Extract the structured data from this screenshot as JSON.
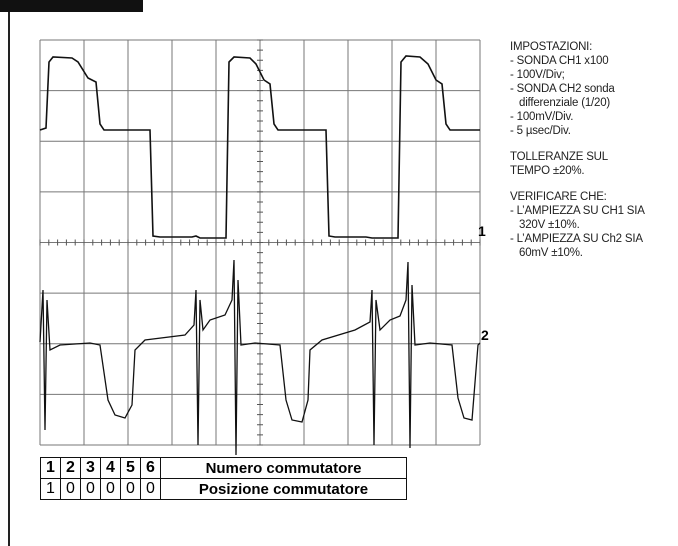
{
  "settings": {
    "title": "IMPOSTAZIONI:",
    "items": [
      "- SONDA CH1 x100",
      "- 100V/Div;",
      "- SONDA CH2 sonda differenziale (1/20)",
      "- 100mV/Div.",
      "- 5 µsec/Div."
    ]
  },
  "tolerance": [
    "TOLLERANZE SUL",
    "TEMPO ±20%."
  ],
  "verify": {
    "title": "VERIFICARE CHE:",
    "items": [
      "- L’AMPIEZZA SU CH1 SIA 320V ±10%.",
      "- L’AMPIEZZA SU Ch2 SIA 60mV ±10%."
    ]
  },
  "markers": [
    "1",
    "2"
  ],
  "table": {
    "rows": [
      [
        "1",
        "2",
        "3",
        "4",
        "5",
        "6",
        "Numero commutatore"
      ],
      [
        "1",
        "0",
        "0",
        "0",
        "0",
        "0",
        "Posizione commutatore"
      ]
    ]
  }
}
